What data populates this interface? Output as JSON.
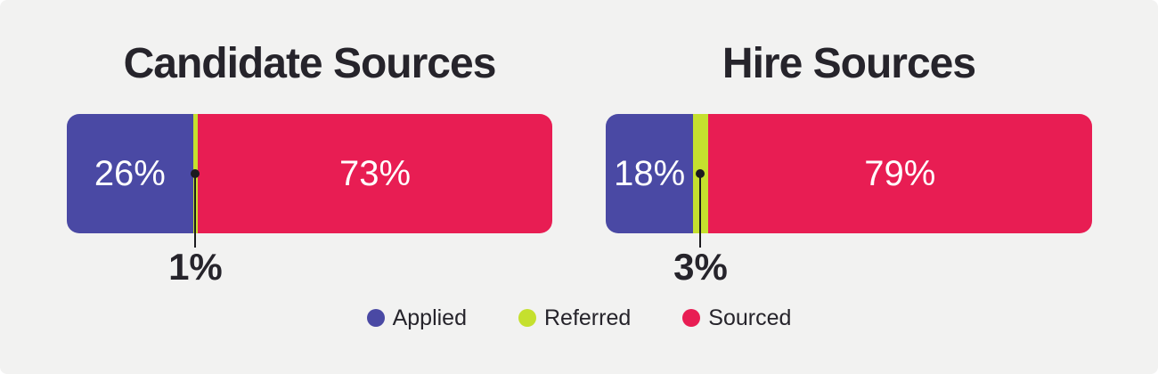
{
  "card": {
    "background": "#f2f2f1"
  },
  "colors": {
    "applied": "#4a49a4",
    "referred": "#c5e02e",
    "sourced": "#e81d53",
    "text_dark": "#26242b",
    "text_light": "#ffffff"
  },
  "charts": [
    {
      "title": "Candidate Sources",
      "segments": [
        {
          "name": "Applied",
          "value": 26,
          "label": "26%"
        },
        {
          "name": "Referred",
          "value": 1
        },
        {
          "name": "Sourced",
          "value": 73,
          "label": "73%"
        }
      ],
      "callout": {
        "label": "1%",
        "target": "Referred"
      }
    },
    {
      "title": "Hire Sources",
      "segments": [
        {
          "name": "Applied",
          "value": 18,
          "label": "18%"
        },
        {
          "name": "Referred",
          "value": 3
        },
        {
          "name": "Sourced",
          "value": 79,
          "label": "79%"
        }
      ],
      "callout": {
        "label": "3%",
        "target": "Referred"
      }
    }
  ],
  "legend": {
    "items": [
      {
        "label": "Applied",
        "color": "#4a49a4"
      },
      {
        "label": "Referred",
        "color": "#c5e02e"
      },
      {
        "label": "Sourced",
        "color": "#e81d53"
      }
    ]
  },
  "chart_data": [
    {
      "type": "bar",
      "subtype": "horizontal-stacked-100pct",
      "title": "Candidate Sources",
      "categories": [
        "Applied",
        "Referred",
        "Sourced"
      ],
      "values": [
        26,
        1,
        73
      ],
      "unit": "%",
      "colors": [
        "#4a49a4",
        "#c5e02e",
        "#e81d53"
      ],
      "annotations": [
        "Referred segment called out below bar as 1%"
      ],
      "legend_position": "bottom",
      "grid": false,
      "axes": false
    },
    {
      "type": "bar",
      "subtype": "horizontal-stacked-100pct",
      "title": "Hire Sources",
      "categories": [
        "Applied",
        "Referred",
        "Sourced"
      ],
      "values": [
        18,
        3,
        79
      ],
      "unit": "%",
      "colors": [
        "#4a49a4",
        "#c5e02e",
        "#e81d53"
      ],
      "annotations": [
        "Referred segment called out below bar as 3%"
      ],
      "legend_position": "bottom",
      "grid": false,
      "axes": false
    }
  ]
}
